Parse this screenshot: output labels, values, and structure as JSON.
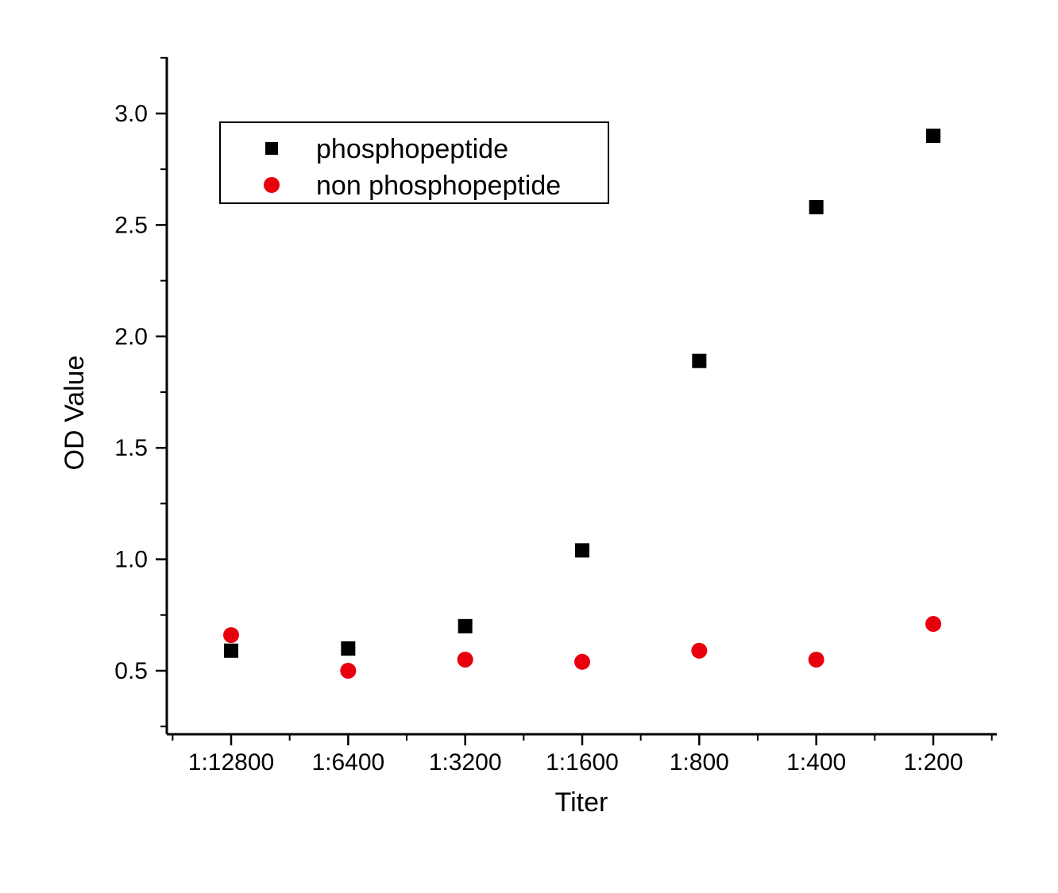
{
  "chart_data": {
    "type": "scatter",
    "title": "",
    "xlabel": "Titer",
    "ylabel": "OD Value",
    "categories": [
      "1:12800",
      "1:6400",
      "1:3200",
      "1:1600",
      "1:800",
      "1:400",
      "1:200"
    ],
    "series": [
      {
        "name": "phosphopeptide",
        "marker": "square",
        "color": "#000000",
        "values": [
          0.59,
          0.6,
          0.7,
          1.04,
          1.89,
          2.58,
          2.9
        ]
      },
      {
        "name": "non phosphopeptide",
        "marker": "circle",
        "color": "#e8000d",
        "values": [
          0.66,
          0.5,
          0.55,
          0.54,
          0.59,
          0.55,
          0.71
        ]
      }
    ],
    "yticks": [
      0.5,
      1.0,
      1.5,
      2.0,
      2.5,
      3.0
    ],
    "ylim": [
      0.2,
      3.25
    ],
    "legend_position": "top-left",
    "grid": false,
    "background": "#ffffff"
  }
}
